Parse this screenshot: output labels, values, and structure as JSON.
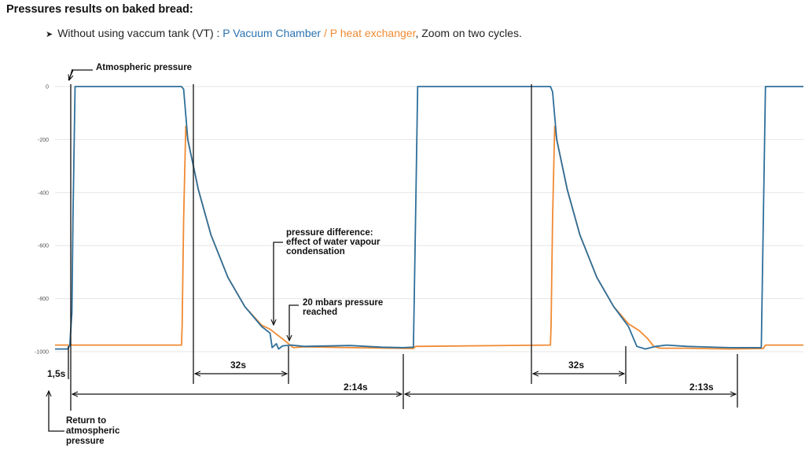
{
  "heading": {
    "title": "Pressures results on baked bread:",
    "bullet_prefix": "Without using vaccum tank (VT) : ",
    "series1_label": "P Vacuum Chamber",
    "separator": " / ",
    "series2_label": "P heat exchanger",
    "suffix": ", Zoom on two cycles."
  },
  "colors": {
    "vacuum_chamber": "#2e6f9a",
    "heat_exchanger": "#f08a32",
    "annotation": "#111111",
    "grid": "#e6e6e6"
  },
  "annotations": {
    "atmospheric": "Atmospheric pressure",
    "pressure_diff_1": "pressure difference:",
    "pressure_diff_2": "effect of water vapour",
    "pressure_diff_3": "condensation",
    "reached_1": "20 mbars pressure",
    "reached_2": "reached",
    "return_1": "Return to",
    "return_2": "atmospheric",
    "return_3": "pressure",
    "dim_1_5s": "1,5s",
    "dim_32s_a": "32s",
    "dim_32s_b": "32s",
    "dim_214": "2:14s",
    "dim_213": "2:13s"
  },
  "chart_data": {
    "type": "line",
    "title": "",
    "xlabel": "",
    "ylabel": "",
    "ylim": [
      -1000,
      0
    ],
    "yticks": [
      0,
      -200,
      -400,
      -600,
      -800,
      -1000
    ],
    "ytick_labels": [
      "0",
      "-200",
      "-400",
      "-600",
      "-800",
      "-1000"
    ],
    "x_unit": "s",
    "xlim": [
      0,
      355
    ],
    "grid": true,
    "series": [
      {
        "name": "P Vacuum Chamber",
        "points": [
          [
            0,
            -990
          ],
          [
            6,
            -990
          ],
          [
            7,
            -975
          ],
          [
            8,
            -850
          ],
          [
            8.5,
            -500
          ],
          [
            9.5,
            0
          ],
          [
            60,
            0
          ],
          [
            61,
            -10
          ],
          [
            63,
            -200
          ],
          [
            68,
            -390
          ],
          [
            74,
            -560
          ],
          [
            82,
            -720
          ],
          [
            90,
            -830
          ],
          [
            98,
            -905
          ],
          [
            102,
            -930
          ],
          [
            103,
            -985
          ],
          [
            105,
            -970
          ],
          [
            106,
            -990
          ],
          [
            108,
            -978
          ],
          [
            112,
            -975
          ],
          [
            118,
            -980
          ],
          [
            140,
            -977
          ],
          [
            155,
            -983
          ],
          [
            165,
            -985
          ],
          [
            170,
            -983
          ],
          [
            171,
            -500
          ],
          [
            172,
            0
          ],
          [
            235,
            0
          ],
          [
            236,
            -20
          ],
          [
            238,
            -200
          ],
          [
            243,
            -390
          ],
          [
            249,
            -560
          ],
          [
            257,
            -720
          ],
          [
            265,
            -830
          ],
          [
            272,
            -905
          ],
          [
            276,
            -980
          ],
          [
            280,
            -990
          ],
          [
            285,
            -980
          ],
          [
            290,
            -975
          ],
          [
            300,
            -980
          ],
          [
            320,
            -985
          ],
          [
            335,
            -985
          ],
          [
            336,
            -500
          ],
          [
            337,
            0
          ],
          [
            355,
            0
          ]
        ]
      },
      {
        "name": "P heat exchanger",
        "points": [
          [
            0,
            -975
          ],
          [
            60,
            -975
          ],
          [
            60.3,
            -900
          ],
          [
            61,
            -500
          ],
          [
            62,
            -150
          ],
          [
            63,
            -200
          ],
          [
            68,
            -390
          ],
          [
            74,
            -560
          ],
          [
            82,
            -720
          ],
          [
            90,
            -830
          ],
          [
            98,
            -900
          ],
          [
            102,
            -915
          ],
          [
            106,
            -940
          ],
          [
            110,
            -965
          ],
          [
            113,
            -985
          ],
          [
            118,
            -982
          ],
          [
            140,
            -985
          ],
          [
            170,
            -988
          ],
          [
            171,
            -980
          ],
          [
            235,
            -975
          ],
          [
            235.3,
            -900
          ],
          [
            236,
            -500
          ],
          [
            237,
            -150
          ],
          [
            238,
            -200
          ],
          [
            243,
            -390
          ],
          [
            249,
            -560
          ],
          [
            257,
            -720
          ],
          [
            265,
            -830
          ],
          [
            272,
            -895
          ],
          [
            277,
            -920
          ],
          [
            281,
            -950
          ],
          [
            284,
            -980
          ],
          [
            287,
            -987
          ],
          [
            300,
            -987
          ],
          [
            320,
            -990
          ],
          [
            336,
            -988
          ],
          [
            337,
            -975
          ],
          [
            355,
            -975
          ]
        ]
      }
    ]
  }
}
